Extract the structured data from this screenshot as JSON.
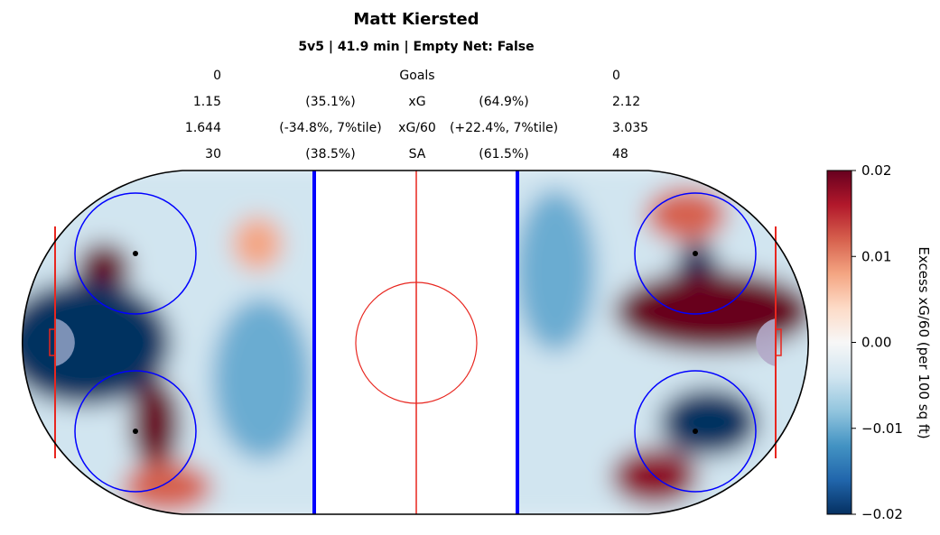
{
  "title": "Matt Kiersted",
  "subtitle": "5v5 | 41.9 min | Empty Net: False",
  "stats": [
    {
      "label": "Goals",
      "left_value": "0",
      "left_pct": "",
      "right_pct": "",
      "right_value": "0"
    },
    {
      "label": "xG",
      "left_value": "1.15",
      "left_pct": "(35.1%)",
      "right_pct": "(64.9%)",
      "right_value": "2.12"
    },
    {
      "label": "xG/60",
      "left_value": "1.644",
      "left_pct": "(-34.8%, 7%tile)",
      "right_pct": "(+22.4%, 7%tile)",
      "right_value": "3.035"
    },
    {
      "label": "SA",
      "left_value": "30",
      "left_pct": "(38.5%)",
      "right_pct": "(61.5%)",
      "right_value": "48"
    }
  ],
  "colorbar": {
    "label": "Excess xG/60 (per 100 sq ft)",
    "ticks": [
      "0.02",
      "0.01",
      "0.00",
      "−0.01",
      "−0.02"
    ],
    "min": -0.02,
    "max": 0.02,
    "colors": [
      "#053061",
      "#2166ac",
      "#4393c3",
      "#92c5de",
      "#d1e5f0",
      "#f7f7f7",
      "#fddbc7",
      "#f4a582",
      "#d6604d",
      "#b2182b",
      "#67001f"
    ]
  },
  "chart_data": {
    "type": "heatmap",
    "value_range": [
      -0.02,
      0.02
    ],
    "regions": [
      {
        "zone": "left",
        "area": "top circle",
        "value": 0.02
      },
      {
        "zone": "left",
        "area": "top high slot",
        "value": 0.008
      },
      {
        "zone": "left",
        "area": "crease and point",
        "value": -0.02
      },
      {
        "zone": "left",
        "area": "bottom circle",
        "value": 0.02
      },
      {
        "zone": "left",
        "area": "bottom corner",
        "value": 0.012
      },
      {
        "zone": "left",
        "area": "near blue line",
        "value": -0.01
      },
      {
        "zone": "right",
        "area": "top circle",
        "value": 0.012
      },
      {
        "zone": "right",
        "area": "top circle dot",
        "value": -0.02
      },
      {
        "zone": "right",
        "area": "slot",
        "value": 0.02
      },
      {
        "zone": "right",
        "area": "bottom circle",
        "value": -0.02
      },
      {
        "zone": "right",
        "area": "bottom corner",
        "value": 0.018
      },
      {
        "zone": "right",
        "area": "near blue line",
        "value": -0.01
      }
    ]
  }
}
